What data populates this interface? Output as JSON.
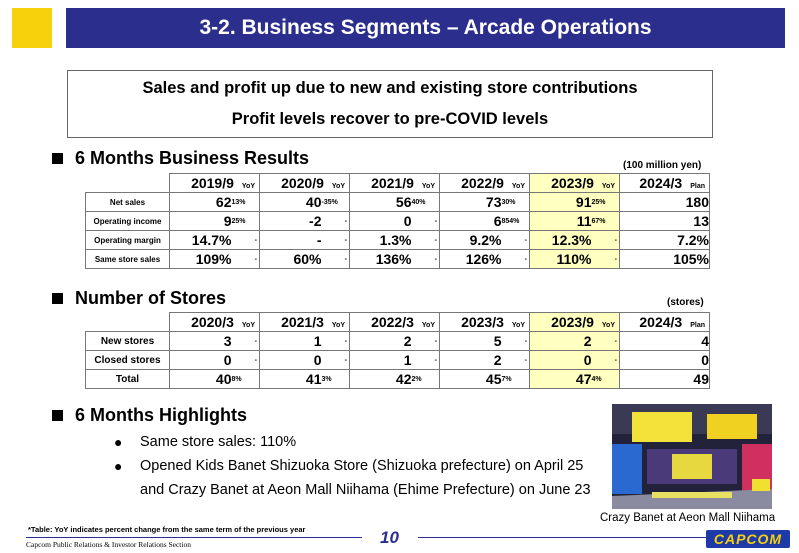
{
  "title": "3-2. Business Segments – Arcade Operations",
  "summary": {
    "line1": "Sales and profit up due to new and existing store contributions",
    "line2": "Profit levels recover to pre-COVID levels"
  },
  "results": {
    "heading": "6 Months Business Results",
    "unit": "(100 million yen)",
    "yoy_label": "YoY",
    "plan_label": "Plan",
    "periods": [
      "2019/9",
      "2020/9",
      "2021/9",
      "2022/9",
      "2023/9",
      "2024/3"
    ],
    "rows": [
      {
        "label": "Net sales",
        "values": [
          "62",
          "40",
          "56",
          "73",
          "91",
          "180"
        ],
        "yoy": [
          "13%",
          "-35%",
          "40%",
          "30%",
          "25%"
        ]
      },
      {
        "label": "Operating income",
        "values": [
          "9",
          "-2",
          "0",
          "6",
          "11",
          "13"
        ],
        "yoy": [
          "25%",
          "-",
          "-",
          "854%",
          "67%"
        ]
      },
      {
        "label": "Operating margin",
        "values": [
          "14.7%",
          "-",
          "1.3%",
          "9.2%",
          "12.3%",
          "7.2%"
        ],
        "yoy": [
          "-",
          "-",
          "-",
          "-",
          "-"
        ]
      },
      {
        "label": "Same store sales",
        "values": [
          "109%",
          "60%",
          "136%",
          "126%",
          "110%",
          "105%"
        ],
        "yoy": [
          "-",
          "-",
          "-",
          "-",
          "-"
        ]
      }
    ]
  },
  "stores": {
    "heading": "Number of Stores",
    "unit": "(stores)",
    "periods": [
      "2020/3",
      "2021/3",
      "2022/3",
      "2023/3",
      "2023/9",
      "2024/3"
    ],
    "rows": [
      {
        "label": "New stores",
        "values": [
          "3",
          "1",
          "2",
          "5",
          "2",
          "4"
        ],
        "yoy": [
          "-",
          "-",
          "-",
          "-",
          "-"
        ]
      },
      {
        "label": "Closed stores",
        "values": [
          "0",
          "0",
          "1",
          "2",
          "0",
          "0"
        ],
        "yoy": [
          "-",
          "-",
          "-",
          "-",
          "-"
        ]
      },
      {
        "label": "Total",
        "values": [
          "40",
          "41",
          "42",
          "45",
          "47",
          "49"
        ],
        "yoy": [
          "8%",
          "3%",
          "2%",
          "7%",
          "4%"
        ]
      }
    ]
  },
  "highlights": {
    "heading": "6 Months Highlights",
    "items": [
      "Same store sales: 110%",
      "Opened Kids Banet Shizuoka Store (Shizuoka prefecture) on April 25 and Crazy Banet at Aeon Mall Niihama (Ehime Prefecture) on June 23"
    ]
  },
  "photo_caption": "Crazy Banet at Aeon Mall Niihama",
  "footnote": "*Table: YoY indicates percent change from the same term of the previous year",
  "page_number": "10",
  "department": "Capcom Public Relations & Investor Relations Section",
  "logo_text": "CAPCOM",
  "colors": {
    "title_bar": "#2b2e8c",
    "accent_yellow": "#f7d10b",
    "highlight_cell": "#ffffc0"
  }
}
